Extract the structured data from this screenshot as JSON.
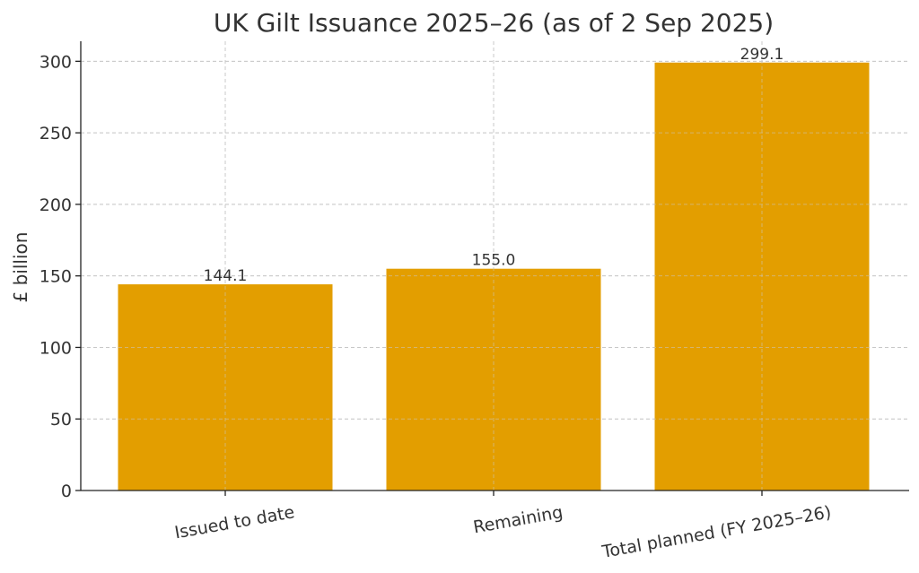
{
  "chart_data": {
    "type": "bar",
    "title": "UK Gilt Issuance 2025–26 (as of 2 Sep 2025)",
    "xlabel": "",
    "ylabel": "£ billion",
    "categories": [
      "Issued to date",
      "Remaining",
      "Total planned (FY 2025–26)"
    ],
    "values": [
      144.1,
      155.0,
      299.1
    ],
    "value_labels": [
      "144.1",
      "155.0",
      "299.1"
    ],
    "ylim": [
      0,
      314
    ],
    "yticks": [
      0,
      50,
      100,
      150,
      200,
      250,
      300
    ],
    "grid": true,
    "bar_color": "#E39E00"
  }
}
